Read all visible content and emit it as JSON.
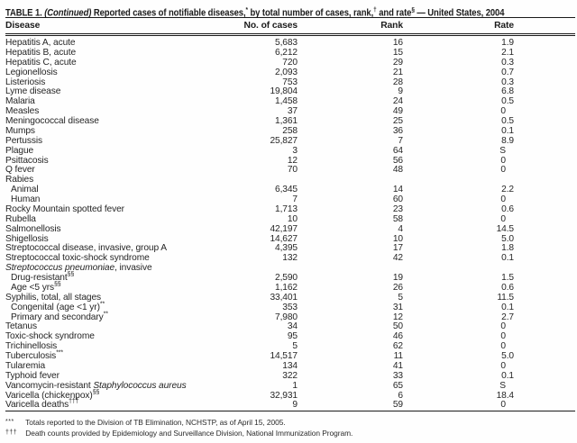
{
  "title": {
    "parts": [
      [
        "TABLE 1. ",
        ""
      ],
      [
        "(Continued)",
        "i"
      ],
      [
        " Reported cases of notifiable diseases,",
        ""
      ],
      [
        "*",
        "s"
      ],
      [
        " by total number of cases, rank,",
        ""
      ],
      [
        "†",
        "s"
      ],
      [
        " and rate",
        ""
      ],
      [
        "§",
        "s"
      ],
      [
        " — United States, 2004",
        ""
      ]
    ]
  },
  "columns": {
    "disease": "Disease",
    "cases": "No. of cases",
    "rank": "Rank",
    "rate": "Rate"
  },
  "rows": [
    {
      "indent": 0,
      "parts": [
        [
          "Hepatitis A, acute",
          ""
        ]
      ],
      "cases": "5,683",
      "rank": "16",
      "rate": "1.9"
    },
    {
      "indent": 0,
      "parts": [
        [
          "Hepatitis B, acute",
          ""
        ]
      ],
      "cases": "6,212",
      "rank": "15",
      "rate": "2.1"
    },
    {
      "indent": 0,
      "parts": [
        [
          "Hepatitis C, acute",
          ""
        ]
      ],
      "cases": "720",
      "rank": "29",
      "rate": "0.3"
    },
    {
      "indent": 0,
      "parts": [
        [
          "Legionellosis",
          ""
        ]
      ],
      "cases": "2,093",
      "rank": "21",
      "rate": "0.7"
    },
    {
      "indent": 0,
      "parts": [
        [
          "Listeriosis",
          ""
        ]
      ],
      "cases": "753",
      "rank": "28",
      "rate": "0.3"
    },
    {
      "indent": 0,
      "parts": [
        [
          "Lyme disease",
          ""
        ]
      ],
      "cases": "19,804",
      "rank": "9",
      "rate": "6.8"
    },
    {
      "indent": 0,
      "parts": [
        [
          "Malaria",
          ""
        ]
      ],
      "cases": "1,458",
      "rank": "24",
      "rate": "0.5"
    },
    {
      "indent": 0,
      "parts": [
        [
          "Measles",
          ""
        ]
      ],
      "cases": "37",
      "rank": "49",
      "rate": "0"
    },
    {
      "indent": 0,
      "parts": [
        [
          "Meningococcal disease",
          ""
        ]
      ],
      "cases": "1,361",
      "rank": "25",
      "rate": "0.5"
    },
    {
      "indent": 0,
      "parts": [
        [
          "Mumps",
          ""
        ]
      ],
      "cases": "258",
      "rank": "36",
      "rate": "0.1"
    },
    {
      "indent": 0,
      "parts": [
        [
          "Pertussis",
          ""
        ]
      ],
      "cases": "25,827",
      "rank": "7",
      "rate": "8.9"
    },
    {
      "indent": 0,
      "parts": [
        [
          "Plague",
          ""
        ]
      ],
      "cases": "3",
      "rank": "64",
      "rate": "S"
    },
    {
      "indent": 0,
      "parts": [
        [
          "Psittacosis",
          ""
        ]
      ],
      "cases": "12",
      "rank": "56",
      "rate": "0"
    },
    {
      "indent": 0,
      "parts": [
        [
          "Q fever",
          ""
        ]
      ],
      "cases": "70",
      "rank": "48",
      "rate": "0"
    },
    {
      "indent": 0,
      "parts": [
        [
          "Rabies",
          ""
        ]
      ],
      "cases": "",
      "rank": "",
      "rate": ""
    },
    {
      "indent": 1,
      "parts": [
        [
          "Animal",
          ""
        ]
      ],
      "cases": "6,345",
      "rank": "14",
      "rate": "2.2"
    },
    {
      "indent": 1,
      "parts": [
        [
          "Human",
          ""
        ]
      ],
      "cases": "7",
      "rank": "60",
      "rate": "0"
    },
    {
      "indent": 0,
      "parts": [
        [
          "Rocky Mountain spotted fever",
          ""
        ]
      ],
      "cases": "1,713",
      "rank": "23",
      "rate": "0.6"
    },
    {
      "indent": 0,
      "parts": [
        [
          "Rubella",
          ""
        ]
      ],
      "cases": "10",
      "rank": "58",
      "rate": "0"
    },
    {
      "indent": 0,
      "parts": [
        [
          "Salmonellosis",
          ""
        ]
      ],
      "cases": "42,197",
      "rank": "4",
      "rate": "14.5"
    },
    {
      "indent": 0,
      "parts": [
        [
          "Shigellosis",
          ""
        ]
      ],
      "cases": "14,627",
      "rank": "10",
      "rate": "5.0"
    },
    {
      "indent": 0,
      "parts": [
        [
          "Streptococcal disease, invasive, group A",
          ""
        ]
      ],
      "cases": "4,395",
      "rank": "17",
      "rate": "1.8"
    },
    {
      "indent": 0,
      "parts": [
        [
          "Streptococcal toxic-shock syndrome",
          ""
        ]
      ],
      "cases": "132",
      "rank": "42",
      "rate": "0.1"
    },
    {
      "indent": 0,
      "parts": [
        [
          "Streptococcus pneumoniae",
          "i"
        ],
        [
          ", invasive",
          ""
        ]
      ],
      "cases": "",
      "rank": "",
      "rate": ""
    },
    {
      "indent": 1,
      "parts": [
        [
          "Drug-resistant",
          ""
        ],
        [
          "§§",
          "s"
        ]
      ],
      "cases": "2,590",
      "rank": "19",
      "rate": "1.5"
    },
    {
      "indent": 1,
      "parts": [
        [
          "Age <5 yrs",
          ""
        ],
        [
          "§§",
          "s"
        ]
      ],
      "cases": "1,162",
      "rank": "26",
      "rate": "0.6"
    },
    {
      "indent": 0,
      "parts": [
        [
          "Syphilis, total, all stages",
          ""
        ]
      ],
      "cases": "33,401",
      "rank": "5",
      "rate": "11.5"
    },
    {
      "indent": 1,
      "parts": [
        [
          "Congenital (age <1 yr)",
          ""
        ],
        [
          "**",
          "s"
        ]
      ],
      "cases": "353",
      "rank": "31",
      "rate": "0.1"
    },
    {
      "indent": 1,
      "parts": [
        [
          "Primary and secondary",
          ""
        ],
        [
          "**",
          "s"
        ]
      ],
      "cases": "7,980",
      "rank": "12",
      "rate": "2.7"
    },
    {
      "indent": 0,
      "parts": [
        [
          "Tetanus",
          ""
        ]
      ],
      "cases": "34",
      "rank": "50",
      "rate": "0"
    },
    {
      "indent": 0,
      "parts": [
        [
          "Toxic-shock syndrome",
          ""
        ]
      ],
      "cases": "95",
      "rank": "46",
      "rate": "0"
    },
    {
      "indent": 0,
      "parts": [
        [
          "Trichinellosis",
          ""
        ]
      ],
      "cases": "5",
      "rank": "62",
      "rate": "0"
    },
    {
      "indent": 0,
      "parts": [
        [
          "Tuberculosis",
          ""
        ],
        [
          "***",
          "s"
        ]
      ],
      "cases": "14,517",
      "rank": "11",
      "rate": "5.0"
    },
    {
      "indent": 0,
      "parts": [
        [
          "Tularemia",
          ""
        ]
      ],
      "cases": "134",
      "rank": "41",
      "rate": "0"
    },
    {
      "indent": 0,
      "parts": [
        [
          "Typhoid fever",
          ""
        ]
      ],
      "cases": "322",
      "rank": "33",
      "rate": "0.1"
    },
    {
      "indent": 0,
      "parts": [
        [
          "Vancomycin-resistant ",
          ""
        ],
        [
          "Staphylococcus aureus",
          "i"
        ]
      ],
      "cases": "1",
      "rank": "65",
      "rate": "S"
    },
    {
      "indent": 0,
      "parts": [
        [
          "Varicella (chickenpox)",
          ""
        ],
        [
          "§§",
          "s"
        ]
      ],
      "cases": "32,931",
      "rank": "6",
      "rate": "18.4"
    },
    {
      "indent": 0,
      "parts": [
        [
          "Varicella deaths",
          ""
        ],
        [
          "†††",
          "s"
        ]
      ],
      "cases": "9",
      "rank": "59",
      "rate": "0"
    }
  ],
  "footnotes": [
    {
      "marker": "***",
      "text": "Totals reported to the Division of TB Elimination, NCHSTP, as of April 15, 2005."
    },
    {
      "marker": "†††",
      "text": "Death counts provided by Epidemiology and Surveillance Division, National Immunization Program."
    }
  ]
}
